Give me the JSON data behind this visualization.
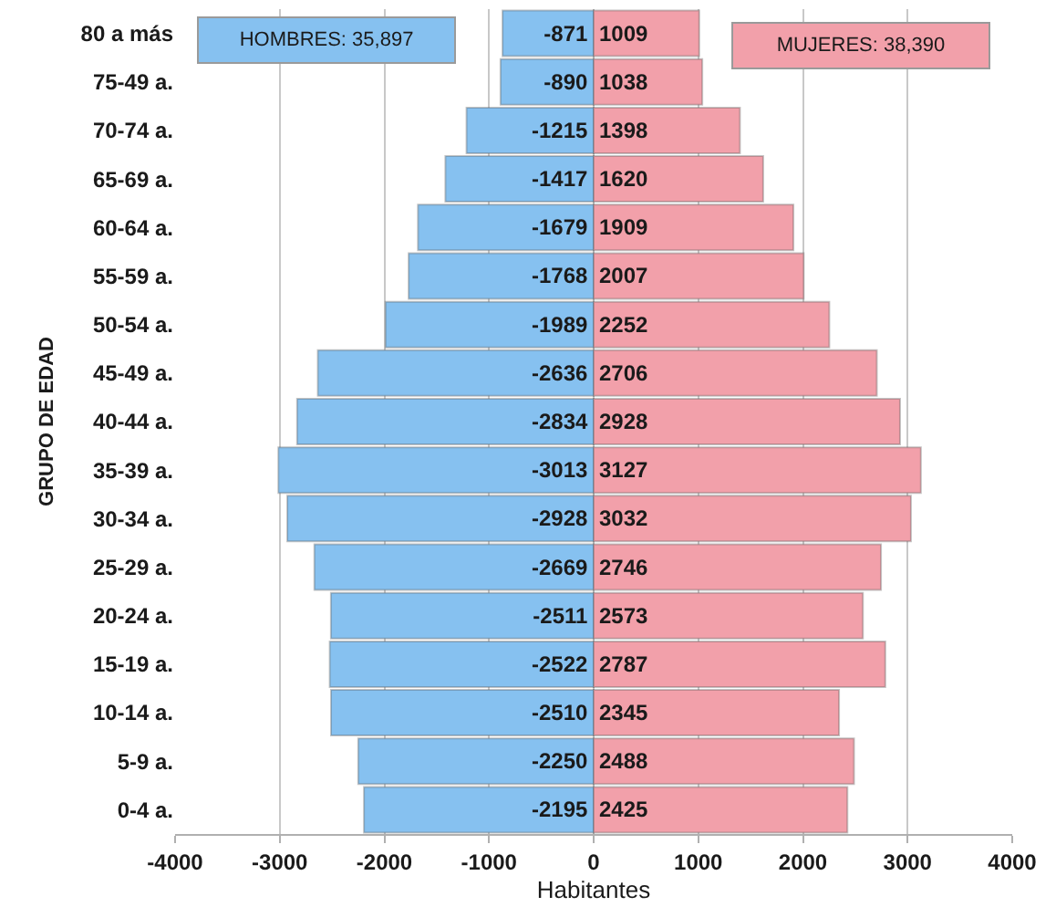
{
  "chart_data": {
    "type": "bar",
    "orientation": "horizontal",
    "stacked": true,
    "xlabel": "Habitantes",
    "ylabel": "GRUPO DE EDAD",
    "categories": [
      "80 a más",
      "75-49 a.",
      "70-74 a.",
      "65-69 a.",
      "60-64 a.",
      "55-59 a.",
      "50-54 a.",
      "45-49 a.",
      "40-44 a.",
      "35-39 a.",
      "30-34 a.",
      "25-29 a.",
      "20-24 a.",
      "15-19 a.",
      "10-14 a.",
      "5-9 a.",
      "0-4 a."
    ],
    "series": [
      {
        "name": "HOMBRES: 35,897",
        "color": "#86c1f0",
        "values": [
          -871,
          -890,
          -1215,
          -1417,
          -1679,
          -1768,
          -1989,
          -2636,
          -2834,
          -3013,
          -2928,
          -2669,
          -2511,
          -2522,
          -2510,
          -2250,
          -2195
        ]
      },
      {
        "name": "MUJERES: 38,390",
        "color": "#f2a0aa",
        "values": [
          1009,
          1038,
          1398,
          1620,
          1909,
          2007,
          2252,
          2706,
          2928,
          3127,
          3032,
          2746,
          2573,
          2787,
          2345,
          2488,
          2425
        ]
      }
    ],
    "xlim": [
      -4000,
      4000
    ],
    "xticks": [
      -4000,
      -3000,
      -2000,
      -1000,
      0,
      1000,
      2000,
      3000,
      4000
    ],
    "grid": "x",
    "data_labels": true
  }
}
